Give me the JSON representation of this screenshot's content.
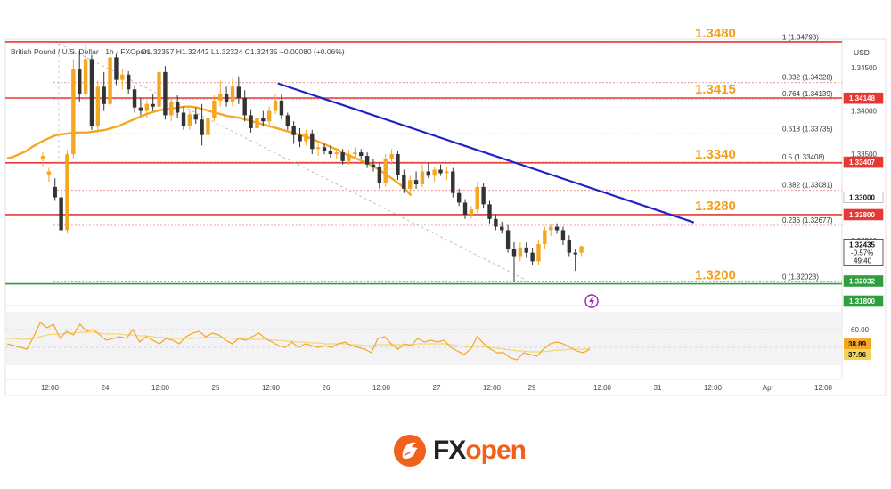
{
  "header": {
    "symbol": "British Pound / U.S. Dollar · 1h · FXOpen",
    "ohlc": "O1.32357  H1.32442  L1.32324  C1.32435  +0.00080 (+0.06%)"
  },
  "currency_label": "USD",
  "colors": {
    "up": "#f5a623",
    "down": "#333333",
    "level": "#e53935",
    "support": "#2e9e3e",
    "trend": "#1f23c8",
    "ma": "#f5a623",
    "key_label": "#f0a020",
    "rsi": "#f5a623",
    "rsi_ma": "#f2d25a",
    "brand": "#f0611c"
  },
  "key_levels": [
    {
      "label": "1.3480",
      "price": 1.348
    },
    {
      "label": "1.3415",
      "price": 1.3415
    },
    {
      "label": "1.3340",
      "price": 1.334
    },
    {
      "label": "1.3280",
      "price": 1.328
    },
    {
      "label": "1.3200",
      "price": 1.32
    }
  ],
  "fib_levels": [
    {
      "label": "1 (1.34793)",
      "price": 1.34793
    },
    {
      "label": "0.832 (1.34328)",
      "price": 1.34328
    },
    {
      "label": "0.764 (1.34139)",
      "price": 1.34139
    },
    {
      "label": "0.618 (1.33735)",
      "price": 1.33735
    },
    {
      "label": "0.5 (1.33408)",
      "price": 1.33408
    },
    {
      "label": "0.382 (1.33081)",
      "price": 1.33081
    },
    {
      "label": "0.236 (1.32677)",
      "price": 1.32677
    },
    {
      "label": "0 (1.32023)",
      "price": 1.32023
    }
  ],
  "price_axis": {
    "ticks": [
      "1.34500",
      "1.34000",
      "1.33500",
      "1.32500"
    ],
    "tick_values": [
      1.345,
      1.34,
      1.335,
      1.325
    ],
    "badges": [
      {
        "label": "1.34148",
        "price": 1.34148,
        "bg": "#e53935"
      },
      {
        "label": "1.33407",
        "price": 1.33407,
        "bg": "#e53935"
      },
      {
        "label": "1.33000",
        "price": 1.33,
        "bg": "#ffffff"
      },
      {
        "label": "1.32800",
        "price": 1.328,
        "bg": "#e53935"
      },
      {
        "label": "1.32032",
        "price": 1.32032,
        "bg": "#2e9e3e"
      },
      {
        "label": "1.31800",
        "price": 1.318,
        "bg": "#2e9e3e"
      }
    ],
    "current": {
      "price_label": "1.32435",
      "change": "-0.57%",
      "countdown": "49:40",
      "price": 1.32435
    }
  },
  "rsi_axis": {
    "ticks": [
      "60.00"
    ],
    "badges": [
      "38.89",
      "37.96"
    ]
  },
  "time_axis": [
    "12:00",
    "24",
    "12:00",
    "25",
    "12:00",
    "26",
    "12:00",
    "27",
    "12:00",
    "29",
    "12:00",
    "31",
    "12:00",
    "Apr",
    "12:00"
  ],
  "chart_data": {
    "type": "candlestick",
    "symbol": "GBPUSD",
    "timeframe": "1h",
    "ylim": [
      1.318,
      1.3482
    ],
    "candles": [
      {
        "o": 1.3344,
        "h": 1.3352,
        "l": 1.3336,
        "c": 1.3348
      },
      {
        "o": 1.3326,
        "h": 1.3334,
        "l": 1.3318,
        "c": 1.333
      },
      {
        "o": 1.3312,
        "h": 1.3322,
        "l": 1.3296,
        "c": 1.33
      },
      {
        "o": 1.33,
        "h": 1.331,
        "l": 1.3258,
        "c": 1.3262
      },
      {
        "o": 1.3262,
        "h": 1.3355,
        "l": 1.3258,
        "c": 1.335
      },
      {
        "o": 1.335,
        "h": 1.346,
        "l": 1.3345,
        "c": 1.3448
      },
      {
        "o": 1.3448,
        "h": 1.347,
        "l": 1.341,
        "c": 1.342
      },
      {
        "o": 1.342,
        "h": 1.3478,
        "l": 1.3412,
        "c": 1.346
      },
      {
        "o": 1.346,
        "h": 1.3465,
        "l": 1.3378,
        "c": 1.3382
      },
      {
        "o": 1.3382,
        "h": 1.3435,
        "l": 1.3375,
        "c": 1.3428
      },
      {
        "o": 1.3428,
        "h": 1.3445,
        "l": 1.34,
        "c": 1.3408
      },
      {
        "o": 1.3408,
        "h": 1.3468,
        "l": 1.3405,
        "c": 1.3462
      },
      {
        "o": 1.3462,
        "h": 1.3466,
        "l": 1.343,
        "c": 1.3436
      },
      {
        "o": 1.3436,
        "h": 1.3448,
        "l": 1.3425,
        "c": 1.3442
      },
      {
        "o": 1.3442,
        "h": 1.3446,
        "l": 1.342,
        "c": 1.3425
      },
      {
        "o": 1.3425,
        "h": 1.343,
        "l": 1.3398,
        "c": 1.3404
      },
      {
        "o": 1.3404,
        "h": 1.3415,
        "l": 1.3395,
        "c": 1.34
      },
      {
        "o": 1.34,
        "h": 1.3412,
        "l": 1.3392,
        "c": 1.3408
      },
      {
        "o": 1.3408,
        "h": 1.342,
        "l": 1.34,
        "c": 1.3405
      },
      {
        "o": 1.3405,
        "h": 1.345,
        "l": 1.3402,
        "c": 1.3445
      },
      {
        "o": 1.3445,
        "h": 1.3452,
        "l": 1.339,
        "c": 1.3395
      },
      {
        "o": 1.3395,
        "h": 1.3415,
        "l": 1.3388,
        "c": 1.341
      },
      {
        "o": 1.341,
        "h": 1.3418,
        "l": 1.3392,
        "c": 1.3398
      },
      {
        "o": 1.3398,
        "h": 1.3405,
        "l": 1.3378,
        "c": 1.3382
      },
      {
        "o": 1.3382,
        "h": 1.34,
        "l": 1.3378,
        "c": 1.3396
      },
      {
        "o": 1.3396,
        "h": 1.3404,
        "l": 1.3385,
        "c": 1.339
      },
      {
        "o": 1.339,
        "h": 1.3408,
        "l": 1.336,
        "c": 1.3372
      },
      {
        "o": 1.3372,
        "h": 1.3398,
        "l": 1.3368,
        "c": 1.3392
      },
      {
        "o": 1.3392,
        "h": 1.3418,
        "l": 1.3388,
        "c": 1.3412
      },
      {
        "o": 1.3412,
        "h": 1.3435,
        "l": 1.3405,
        "c": 1.342
      },
      {
        "o": 1.342,
        "h": 1.3428,
        "l": 1.3405,
        "c": 1.341
      },
      {
        "o": 1.341,
        "h": 1.3438,
        "l": 1.3405,
        "c": 1.3428
      },
      {
        "o": 1.3428,
        "h": 1.344,
        "l": 1.3408,
        "c": 1.3415
      },
      {
        "o": 1.3415,
        "h": 1.3424,
        "l": 1.3388,
        "c": 1.3395
      },
      {
        "o": 1.3395,
        "h": 1.3402,
        "l": 1.3375,
        "c": 1.338
      },
      {
        "o": 1.338,
        "h": 1.3396,
        "l": 1.3376,
        "c": 1.3392
      },
      {
        "o": 1.3392,
        "h": 1.34,
        "l": 1.3382,
        "c": 1.3388
      },
      {
        "o": 1.3388,
        "h": 1.3405,
        "l": 1.3384,
        "c": 1.34
      },
      {
        "o": 1.34,
        "h": 1.342,
        "l": 1.3396,
        "c": 1.3412
      },
      {
        "o": 1.3412,
        "h": 1.342,
        "l": 1.339,
        "c": 1.3395
      },
      {
        "o": 1.3395,
        "h": 1.3398,
        "l": 1.3378,
        "c": 1.3382
      },
      {
        "o": 1.3382,
        "h": 1.3388,
        "l": 1.3362,
        "c": 1.3372
      },
      {
        "o": 1.3372,
        "h": 1.338,
        "l": 1.3358,
        "c": 1.3365
      },
      {
        "o": 1.3365,
        "h": 1.3378,
        "l": 1.336,
        "c": 1.3374
      },
      {
        "o": 1.3374,
        "h": 1.3378,
        "l": 1.335,
        "c": 1.3356
      },
      {
        "o": 1.3356,
        "h": 1.3362,
        "l": 1.3348,
        "c": 1.3358
      },
      {
        "o": 1.3358,
        "h": 1.3362,
        "l": 1.335,
        "c": 1.3354
      },
      {
        "o": 1.3354,
        "h": 1.336,
        "l": 1.3346,
        "c": 1.335
      },
      {
        "o": 1.335,
        "h": 1.3356,
        "l": 1.3344,
        "c": 1.3352
      },
      {
        "o": 1.3352,
        "h": 1.3356,
        "l": 1.3338,
        "c": 1.3342
      },
      {
        "o": 1.3342,
        "h": 1.3355,
        "l": 1.3338,
        "c": 1.335
      },
      {
        "o": 1.335,
        "h": 1.3358,
        "l": 1.3345,
        "c": 1.3352
      },
      {
        "o": 1.3352,
        "h": 1.3356,
        "l": 1.3344,
        "c": 1.3348
      },
      {
        "o": 1.3348,
        "h": 1.3352,
        "l": 1.3334,
        "c": 1.3338
      },
      {
        "o": 1.3338,
        "h": 1.3345,
        "l": 1.333,
        "c": 1.3335
      },
      {
        "o": 1.3335,
        "h": 1.334,
        "l": 1.331,
        "c": 1.3316
      },
      {
        "o": 1.3316,
        "h": 1.335,
        "l": 1.3312,
        "c": 1.3345
      },
      {
        "o": 1.3345,
        "h": 1.3356,
        "l": 1.3338,
        "c": 1.335
      },
      {
        "o": 1.335,
        "h": 1.3354,
        "l": 1.332,
        "c": 1.3326
      },
      {
        "o": 1.3326,
        "h": 1.3332,
        "l": 1.3305,
        "c": 1.331
      },
      {
        "o": 1.331,
        "h": 1.3325,
        "l": 1.3304,
        "c": 1.332
      },
      {
        "o": 1.332,
        "h": 1.333,
        "l": 1.331,
        "c": 1.3315
      },
      {
        "o": 1.3315,
        "h": 1.3338,
        "l": 1.3312,
        "c": 1.333
      },
      {
        "o": 1.333,
        "h": 1.334,
        "l": 1.3322,
        "c": 1.3325
      },
      {
        "o": 1.3325,
        "h": 1.3335,
        "l": 1.3318,
        "c": 1.3332
      },
      {
        "o": 1.3332,
        "h": 1.3338,
        "l": 1.3325,
        "c": 1.3328
      },
      {
        "o": 1.3328,
        "h": 1.3335,
        "l": 1.332,
        "c": 1.333
      },
      {
        "o": 1.333,
        "h": 1.3334,
        "l": 1.33,
        "c": 1.3305
      },
      {
        "o": 1.3305,
        "h": 1.331,
        "l": 1.329,
        "c": 1.3294
      },
      {
        "o": 1.3294,
        "h": 1.3298,
        "l": 1.3275,
        "c": 1.328
      },
      {
        "o": 1.328,
        "h": 1.329,
        "l": 1.3276,
        "c": 1.3286
      },
      {
        "o": 1.3286,
        "h": 1.3318,
        "l": 1.3282,
        "c": 1.3312
      },
      {
        "o": 1.3312,
        "h": 1.3316,
        "l": 1.3288,
        "c": 1.3292
      },
      {
        "o": 1.3292,
        "h": 1.3296,
        "l": 1.327,
        "c": 1.3275
      },
      {
        "o": 1.3275,
        "h": 1.328,
        "l": 1.3262,
        "c": 1.3266
      },
      {
        "o": 1.3266,
        "h": 1.3272,
        "l": 1.3258,
        "c": 1.3262
      },
      {
        "o": 1.3262,
        "h": 1.3268,
        "l": 1.3236,
        "c": 1.324
      },
      {
        "o": 1.324,
        "h": 1.3248,
        "l": 1.3202,
        "c": 1.3232
      },
      {
        "o": 1.3232,
        "h": 1.3248,
        "l": 1.3226,
        "c": 1.3242
      },
      {
        "o": 1.3242,
        "h": 1.3248,
        "l": 1.323,
        "c": 1.3236
      },
      {
        "o": 1.3236,
        "h": 1.3242,
        "l": 1.3222,
        "c": 1.3226
      },
      {
        "o": 1.3226,
        "h": 1.325,
        "l": 1.3222,
        "c": 1.3246
      },
      {
        "o": 1.3246,
        "h": 1.3266,
        "l": 1.324,
        "c": 1.3262
      },
      {
        "o": 1.3262,
        "h": 1.327,
        "l": 1.3255,
        "c": 1.3266
      },
      {
        "o": 1.3266,
        "h": 1.327,
        "l": 1.3258,
        "c": 1.3262
      },
      {
        "o": 1.3262,
        "h": 1.3266,
        "l": 1.3245,
        "c": 1.325
      },
      {
        "o": 1.325,
        "h": 1.3256,
        "l": 1.3232,
        "c": 1.3236
      },
      {
        "o": 1.3236,
        "h": 1.324,
        "l": 1.3215,
        "c": 1.3234
      },
      {
        "o": 1.3236,
        "h": 1.3244,
        "l": 1.3232,
        "c": 1.32435
      }
    ],
    "moving_average": [
      1.3345,
      1.3347,
      1.335,
      1.3353,
      1.3358,
      1.3362,
      1.3366,
      1.3369,
      1.3372,
      1.3373,
      1.3374,
      1.3375,
      1.3375,
      1.3375,
      1.3376,
      1.3377,
      1.3378,
      1.338,
      1.3382,
      1.3385,
      1.3388,
      1.3391,
      1.3394,
      1.3397,
      1.3399,
      1.3401,
      1.3402,
      1.3403,
      1.3404,
      1.3405,
      1.3405,
      1.3404,
      1.3402,
      1.34,
      1.3398,
      1.3396,
      1.3394,
      1.3393,
      1.3392,
      1.339,
      1.3388,
      1.3386,
      1.3384,
      1.3382,
      1.338,
      1.3378,
      1.3376,
      1.3374,
      1.3372,
      1.337,
      1.3367,
      1.3364,
      1.3361,
      1.3358,
      1.3355,
      1.3351,
      1.3348,
      1.3345,
      1.3342,
      1.3339,
      1.3335,
      1.3331,
      1.3326,
      1.3321,
      1.3316,
      1.331,
      1.3302
    ],
    "trendline": {
      "from": {
        "index": 49,
        "price": 1.3432
      },
      "to": {
        "index": 125,
        "price": 1.3271
      }
    },
    "rsi": [
      44,
      42,
      40,
      38,
      52,
      68,
      62,
      66,
      50,
      58,
      54,
      66,
      58,
      60,
      54,
      48,
      50,
      52,
      50,
      60,
      46,
      52,
      48,
      44,
      50,
      48,
      44,
      52,
      56,
      58,
      52,
      56,
      54,
      48,
      44,
      50,
      48,
      52,
      56,
      50,
      46,
      42,
      40,
      46,
      40,
      44,
      42,
      40,
      42,
      40,
      44,
      46,
      42,
      40,
      38,
      34,
      50,
      52,
      44,
      38,
      44,
      42,
      50,
      46,
      48,
      46,
      48,
      40,
      36,
      32,
      38,
      52,
      44,
      38,
      34,
      34,
      28,
      26,
      34,
      32,
      30,
      38,
      44,
      46,
      44,
      40,
      36,
      34,
      37.96
    ],
    "rsi_ma": [
      50,
      50,
      49,
      49,
      50,
      52,
      54,
      55,
      55,
      56,
      56,
      57,
      57,
      57,
      56,
      55,
      55,
      55,
      54,
      54,
      53,
      53,
      52,
      51,
      51,
      50,
      50,
      50,
      50,
      51,
      51,
      51,
      51,
      51,
      50,
      50,
      49,
      49,
      49,
      49,
      48,
      48,
      47,
      47,
      46,
      46,
      45,
      45,
      44,
      44,
      44,
      44,
      43,
      43,
      42,
      42,
      43,
      43,
      43,
      43,
      43,
      43,
      44,
      44,
      44,
      44,
      44,
      43,
      42,
      41,
      41,
      41,
      41,
      40,
      39,
      38,
      37,
      36,
      36,
      35,
      35,
      35,
      36,
      37,
      37,
      38,
      38,
      38,
      38.89
    ],
    "rsi_ylim": [
      20,
      80
    ]
  }
}
